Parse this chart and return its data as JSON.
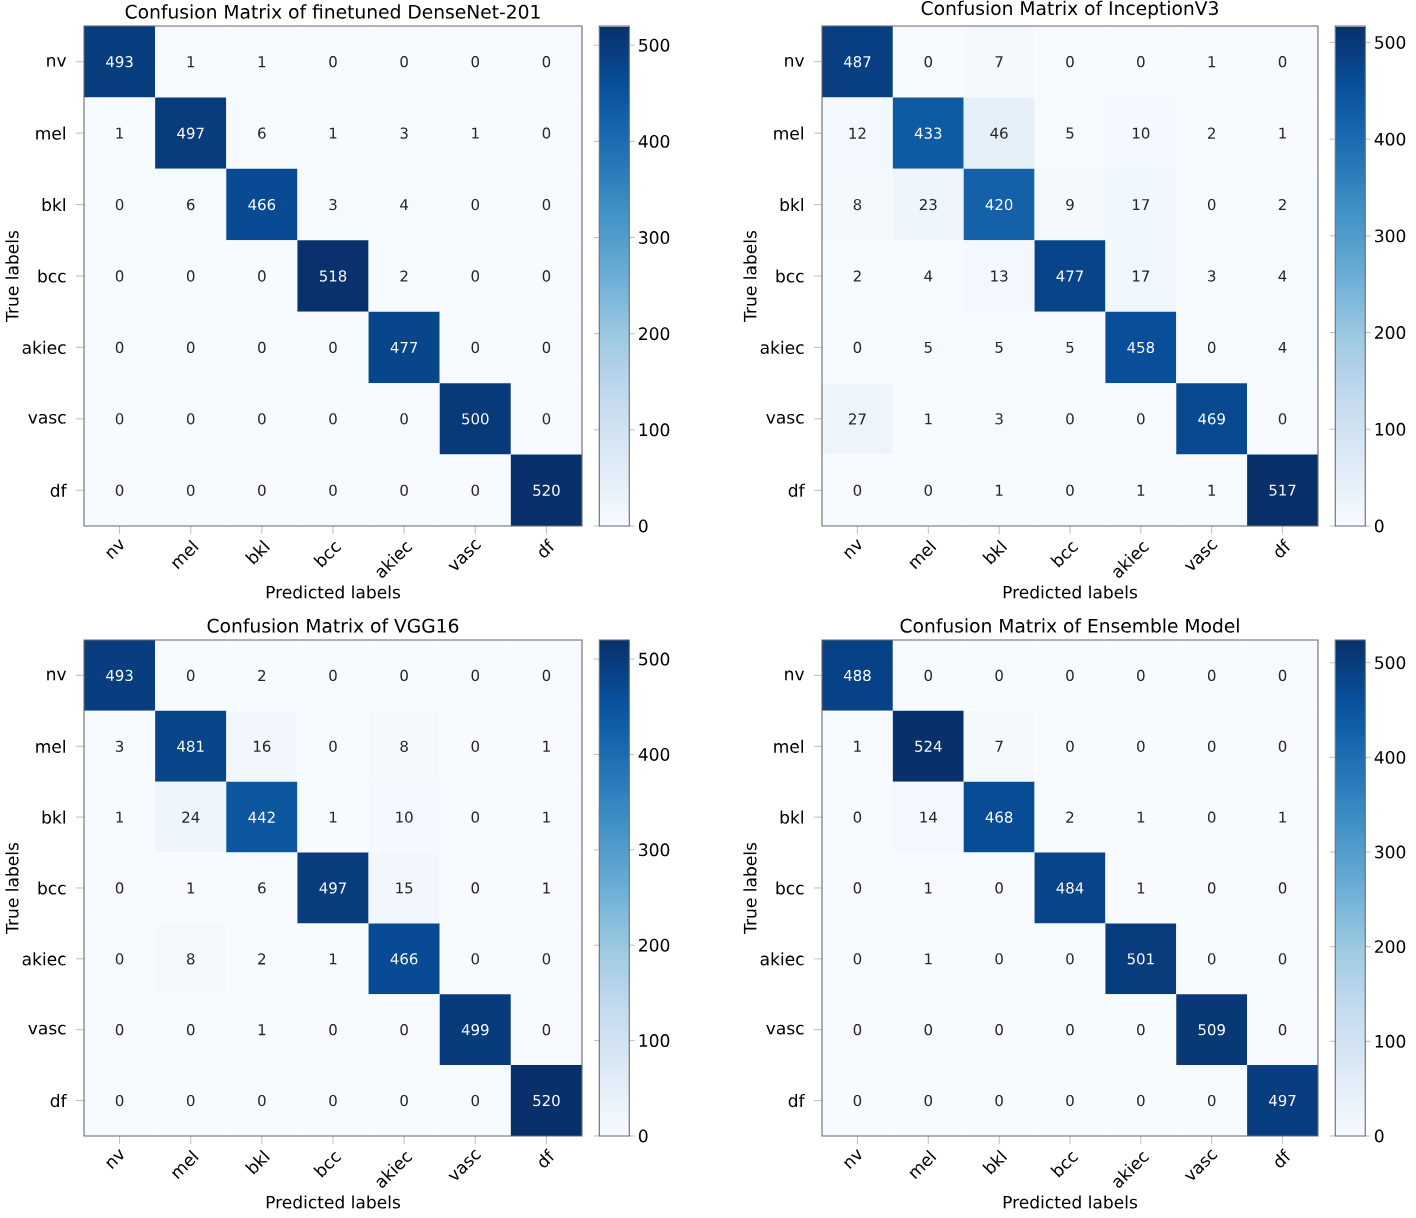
{
  "chart_data": [
    {
      "type": "heatmap",
      "title": "Confusion Matrix of finetuned DenseNet-201",
      "xlabel": "Predicted labels",
      "ylabel": "True labels",
      "categories": [
        "nv",
        "mel",
        "bkl",
        "bcc",
        "akiec",
        "vasc",
        "df"
      ],
      "y_categories": [
        "nv",
        "mel",
        "bkl",
        "bcc",
        "akiec",
        "vasc",
        "df"
      ],
      "cells": [
        [
          493,
          1,
          1,
          0,
          0,
          0,
          0
        ],
        [
          1,
          497,
          6,
          1,
          3,
          1,
          0
        ],
        [
          0,
          6,
          466,
          3,
          4,
          0,
          0
        ],
        [
          0,
          0,
          0,
          518,
          2,
          0,
          0
        ],
        [
          0,
          0,
          0,
          0,
          477,
          0,
          0
        ],
        [
          0,
          0,
          0,
          0,
          0,
          500,
          0
        ],
        [
          0,
          0,
          0,
          0,
          0,
          0,
          520
        ]
      ],
      "clim": [
        0,
        520
      ],
      "cticks": [
        0,
        100,
        200,
        300,
        400,
        500
      ],
      "data_labels": true
    },
    {
      "type": "heatmap",
      "title": "Confusion Matrix of InceptionV3",
      "xlabel": "Predicted labels",
      "ylabel": "True labels",
      "categories": [
        "nv",
        "mel",
        "bkl",
        "bcc",
        "akiec",
        "vasc",
        "df"
      ],
      "y_categories": [
        "nv",
        "mel",
        "bkl",
        "bcc",
        "akiec",
        "vasc",
        "df"
      ],
      "cells": [
        [
          487,
          0,
          7,
          0,
          0,
          1,
          0
        ],
        [
          12,
          433,
          46,
          5,
          10,
          2,
          1
        ],
        [
          8,
          23,
          420,
          9,
          17,
          0,
          2
        ],
        [
          2,
          4,
          13,
          477,
          17,
          3,
          4
        ],
        [
          0,
          5,
          5,
          5,
          458,
          0,
          4
        ],
        [
          27,
          1,
          3,
          0,
          0,
          469,
          0
        ],
        [
          0,
          0,
          1,
          0,
          1,
          1,
          517
        ]
      ],
      "clim": [
        0,
        517
      ],
      "cticks": [
        0,
        100,
        200,
        300,
        400,
        500
      ],
      "data_labels": true
    },
    {
      "type": "heatmap",
      "title": "Confusion Matrix of VGG16",
      "xlabel": "Predicted labels",
      "ylabel": "True labels",
      "categories": [
        "nv",
        "mel",
        "bkl",
        "bcc",
        "akiec",
        "vasc",
        "df"
      ],
      "y_categories": [
        "nv",
        "mel",
        "bkl",
        "bcc",
        "akiec",
        "vasc",
        "df"
      ],
      "cells": [
        [
          493,
          0,
          2,
          0,
          0,
          0,
          0
        ],
        [
          3,
          481,
          16,
          0,
          8,
          0,
          1
        ],
        [
          1,
          24,
          442,
          1,
          10,
          0,
          1
        ],
        [
          0,
          1,
          6,
          497,
          15,
          0,
          1
        ],
        [
          0,
          8,
          2,
          1,
          466,
          0,
          0
        ],
        [
          0,
          0,
          1,
          0,
          0,
          499,
          0
        ],
        [
          0,
          0,
          0,
          0,
          0,
          0,
          520
        ]
      ],
      "clim": [
        0,
        520
      ],
      "cticks": [
        0,
        100,
        200,
        300,
        400,
        500
      ],
      "data_labels": true
    },
    {
      "type": "heatmap",
      "title": "Confusion Matrix of Ensemble Model",
      "xlabel": "Predicted labels",
      "ylabel": "True labels",
      "categories": [
        "nv",
        "mel",
        "bkl",
        "bcc",
        "akiec",
        "vasc",
        "df"
      ],
      "y_categories": [
        "nv",
        "mel",
        "bkl",
        "bcc",
        "akiec",
        "vasc",
        "df"
      ],
      "cells": [
        [
          488,
          0,
          0,
          0,
          0,
          0,
          0
        ],
        [
          1,
          524,
          7,
          0,
          0,
          0,
          0
        ],
        [
          0,
          14,
          468,
          2,
          1,
          0,
          1
        ],
        [
          0,
          1,
          0,
          484,
          1,
          0,
          0
        ],
        [
          0,
          1,
          0,
          0,
          501,
          0,
          0
        ],
        [
          0,
          0,
          0,
          0,
          0,
          509,
          0
        ],
        [
          0,
          0,
          0,
          0,
          0,
          0,
          497
        ]
      ],
      "clim": [
        0,
        524
      ],
      "cticks": [
        0,
        100,
        200,
        300,
        400,
        500
      ],
      "data_labels": true
    }
  ]
}
